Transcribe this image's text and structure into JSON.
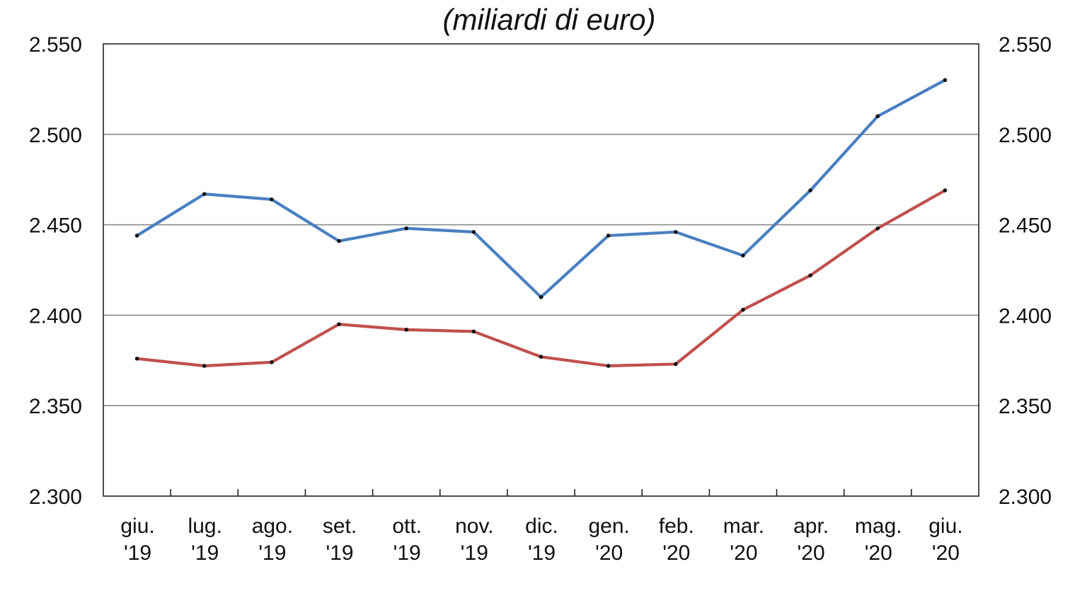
{
  "chart_data": {
    "type": "line",
    "title": "(miliardi di euro)",
    "categories": [
      [
        "giu.",
        "'19"
      ],
      [
        "lug.",
        "'19"
      ],
      [
        "ago.",
        "'19"
      ],
      [
        "set.",
        "'19"
      ],
      [
        "ott.",
        "'19"
      ],
      [
        "nov.",
        "'19"
      ],
      [
        "dic.",
        "'19"
      ],
      [
        "gen.",
        "'20"
      ],
      [
        "feb.",
        "'20"
      ],
      [
        "mar.",
        "'20"
      ],
      [
        "apr.",
        "'20"
      ],
      [
        "mag.",
        "'20"
      ],
      [
        "giu.",
        "'20"
      ]
    ],
    "y_ticks": [
      "2.300",
      "2.350",
      "2.400",
      "2.450",
      "2.500",
      "2.550"
    ],
    "y_tick_values": [
      2300,
      2350,
      2400,
      2450,
      2500,
      2550
    ],
    "ylim": [
      2300,
      2550
    ],
    "grid": true,
    "secondary_axis": true,
    "series": [
      {
        "color": "#4a7fc1",
        "values": [
          2444,
          2467,
          2464,
          2441,
          2448,
          2446,
          2410,
          2444,
          2446,
          2433,
          2469,
          2510,
          2530
        ]
      },
      {
        "color": "#c0504d",
        "values": [
          2376,
          2372,
          2374,
          2395,
          2392,
          2391,
          2377,
          2372,
          2373,
          2403,
          2422,
          2448,
          2469
        ]
      }
    ]
  }
}
